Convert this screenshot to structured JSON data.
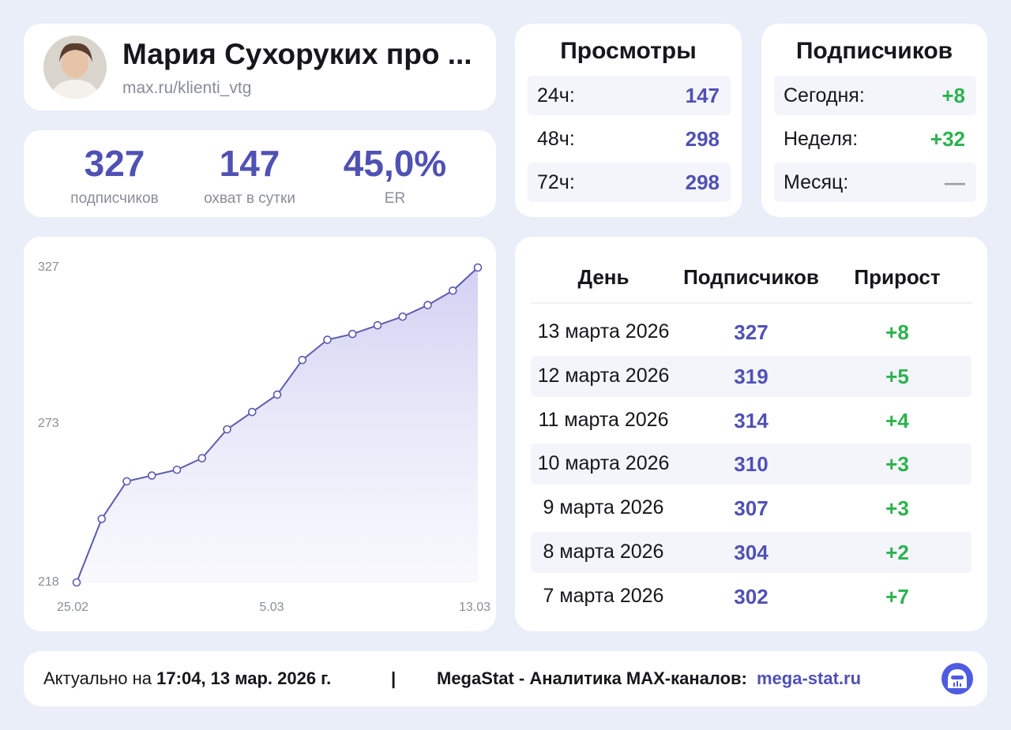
{
  "header": {
    "title": "Мария Сухоруких про ...",
    "link": "max.ru/klienti_vtg"
  },
  "stats": [
    {
      "value": "327",
      "label": "подписчиков"
    },
    {
      "value": "147",
      "label": "охват в сутки"
    },
    {
      "value": "45,0%",
      "label": "ER"
    }
  ],
  "views": {
    "title": "Просмотры",
    "rows": [
      [
        "24ч:",
        "147"
      ],
      [
        "48ч:",
        "298"
      ],
      [
        "72ч:",
        "298"
      ]
    ]
  },
  "subscribers": {
    "title": "Подписчиков",
    "rows": [
      [
        "Сегодня:",
        "+8"
      ],
      [
        "Неделя:",
        "+32"
      ],
      [
        "Месяц:",
        "—"
      ]
    ]
  },
  "table": {
    "columns": [
      "День",
      "Подписчиков",
      "Прирост"
    ],
    "rows": [
      [
        "13 марта 2026",
        "327",
        "+8"
      ],
      [
        "12 марта 2026",
        "319",
        "+5"
      ],
      [
        "11 марта 2026",
        "314",
        "+4"
      ],
      [
        "10 марта 2026",
        "310",
        "+3"
      ],
      [
        "9 марта 2026",
        "307",
        "+3"
      ],
      [
        "8 марта 2026",
        "304",
        "+2"
      ],
      [
        "7 марта 2026",
        "302",
        "+7"
      ]
    ]
  },
  "footer": {
    "prefix": "Актуально на",
    "time": "17:04, 13 мар. 2026 г.",
    "separator": "|",
    "brand": "MegaStat - Аналитика MAX-каналов:",
    "link": "mega-stat.ru"
  },
  "chart_data": {
    "type": "line",
    "categories": [
      "25.02",
      null,
      null,
      null,
      null,
      null,
      null,
      null,
      "5.03",
      null,
      null,
      null,
      null,
      null,
      null,
      null,
      "13.03"
    ],
    "values": [
      218,
      240,
      253,
      255,
      257,
      261,
      271,
      277,
      283,
      295,
      302,
      304,
      307,
      310,
      314,
      319,
      327
    ],
    "color": "#5b5bb0",
    "ylim": [
      218,
      327
    ],
    "yticks": [
      218,
      273,
      327
    ]
  }
}
